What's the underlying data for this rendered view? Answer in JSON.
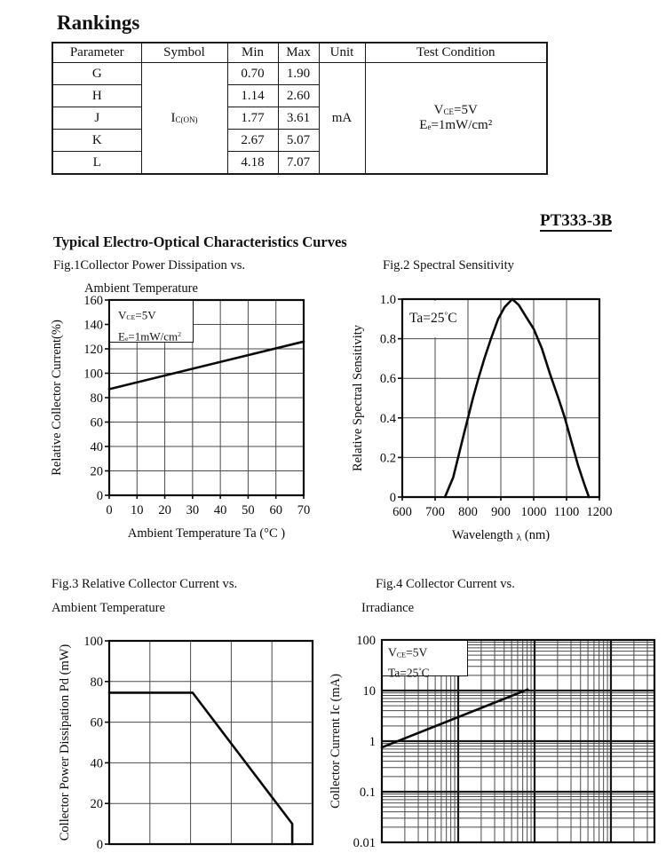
{
  "page": {
    "title": "Rankings",
    "part_number": "PT333-3B",
    "section_heading": "Typical Electro-Optical Characteristics Curves"
  },
  "rankings_table": {
    "headers": [
      "Parameter",
      "Symbol",
      "Min",
      "Max",
      "Unit",
      "Test Condition"
    ],
    "rows": [
      {
        "parameter": "G",
        "min": "0.70",
        "max": "1.90"
      },
      {
        "parameter": "H",
        "min": "1.14",
        "max": "2.60"
      },
      {
        "parameter": "J",
        "min": "1.77",
        "max": "3.61"
      },
      {
        "parameter": "K",
        "min": "2.67",
        "max": "5.07"
      },
      {
        "parameter": "L",
        "min": "4.18",
        "max": "7.07"
      }
    ],
    "symbol": {
      "pre": "I",
      "sub": "C(ON)"
    },
    "unit": "mA",
    "test_condition": {
      "line1": {
        "pre": "V",
        "sub": "CE",
        "mid": "=5V"
      },
      "line2": {
        "pre": "E",
        "sub": "e",
        "mid": "=1mW/cm²"
      }
    }
  },
  "figures": {
    "fig1": {
      "caption_line1": "Fig.1Collector Power Dissipation vs.",
      "caption_line2": "Ambient Temperature",
      "annotation": {
        "line1": {
          "pre": "V",
          "sub": "CE",
          "mid": "=5V"
        },
        "line2": {
          "pre": "E",
          "sub": "e",
          "mid": "=1mW/cm",
          "sup": "2"
        }
      }
    },
    "fig2": {
      "caption": "Fig.2 Spectral Sensitivity",
      "annotation": {
        "line1": {
          "pre": "Ta=25",
          "sup": "°",
          "post": "C"
        }
      }
    },
    "fig3": {
      "caption_line1": "Fig.3 Relative Collector Current vs.",
      "caption_line2": "Ambient Temperature"
    },
    "fig4": {
      "caption_line1": "Fig.4 Collector Current vs.",
      "caption_line2": "Irradiance",
      "annotation": {
        "line1": {
          "pre": "V",
          "sub": "CE",
          "mid": "=5V"
        },
        "line2": {
          "pre": "Ta=25",
          "sup": "°",
          "post": "C"
        }
      }
    }
  },
  "chart_data": [
    {
      "id": "fig1",
      "type": "line",
      "title": "Fig.1 Collector Power Dissipation vs. Ambient Temperature",
      "xlabel": "Ambient Temperature Ta (°C )",
      "ylabel": "Relative Collector Current(%)",
      "xlim": [
        0,
        70
      ],
      "ylim": [
        0,
        160
      ],
      "xticks": [
        0,
        10,
        20,
        30,
        40,
        50,
        60,
        70
      ],
      "yticks": [
        0,
        20,
        40,
        60,
        80,
        100,
        120,
        140,
        160
      ],
      "grid": true,
      "annotation": "VCE=5V, Ee=1mW/cm²",
      "series": [
        {
          "name": "relative collector current",
          "points": [
            [
              0,
              87
            ],
            [
              70,
              126
            ]
          ]
        }
      ]
    },
    {
      "id": "fig2",
      "type": "line",
      "title": "Fig.2 Spectral Sensitivity",
      "xlabel_parts": [
        {
          "t": "Wavelength  "
        },
        {
          "t": "λ",
          "small": true
        },
        {
          "t": "  (nm)"
        }
      ],
      "ylabel": "Relative Spectral Sensitivity",
      "xlim": [
        600,
        1200
      ],
      "ylim": [
        0,
        1.0
      ],
      "xticks": [
        600,
        700,
        800,
        900,
        1000,
        1100,
        1200
      ],
      "yticks": [
        0,
        0.2,
        0.4,
        0.6,
        0.8,
        1.0
      ],
      "ytick_labels": [
        "0",
        "0.2",
        "0.4",
        "0.6",
        "0.8",
        "1.0"
      ],
      "grid": true,
      "annotation": "Ta=25°C",
      "series": [
        {
          "name": "relative spectral sensitivity",
          "points": [
            [
              730,
              0
            ],
            [
              755,
              0.1
            ],
            [
              770,
              0.2
            ],
            [
              785,
              0.3
            ],
            [
              800,
              0.4
            ],
            [
              815,
              0.5
            ],
            [
              832,
              0.6
            ],
            [
              850,
              0.7
            ],
            [
              870,
              0.8
            ],
            [
              892,
              0.9
            ],
            [
              912,
              0.96
            ],
            [
              935,
              1.0
            ],
            [
              955,
              0.97
            ],
            [
              977,
              0.91
            ],
            [
              1000,
              0.85
            ],
            [
              1025,
              0.75
            ],
            [
              1050,
              0.62
            ],
            [
              1075,
              0.5
            ],
            [
              1095,
              0.4
            ],
            [
              1115,
              0.28
            ],
            [
              1135,
              0.16
            ],
            [
              1155,
              0.06
            ],
            [
              1168,
              0
            ]
          ]
        }
      ]
    },
    {
      "id": "fig3",
      "type": "line",
      "title": "Fig.3 Relative Collector Current vs. Ambient Temperature",
      "ylabel": "Collector Power Dissipation Pd (mW)",
      "xlim": [
        0,
        100
      ],
      "ylim": [
        0,
        100
      ],
      "x_gridlines": [
        20,
        40,
        60,
        80
      ],
      "x_tick_labels_visible": false,
      "yticks": [
        0,
        20,
        40,
        60,
        80,
        100
      ],
      "grid": true,
      "series": [
        {
          "name": "collector power dissipation derating",
          "points": [
            [
              0,
              74.5
            ],
            [
              41,
              74.5
            ],
            [
              90,
              10
            ],
            [
              90,
              0
            ]
          ]
        }
      ]
    },
    {
      "id": "fig4",
      "type": "line",
      "x_scale": "log",
      "y_scale": "log",
      "title": "Fig.4 Collector Current vs. Irradiance",
      "ylabel": "Collector Current Ic (mA)",
      "ylim": [
        0.01,
        100
      ],
      "yticks": [
        100,
        10,
        1,
        0.1,
        0.01
      ],
      "ytick_labels": [
        "100",
        "10",
        "1",
        "0.1",
        "0.01"
      ],
      "x_decades_span": 3.57,
      "x_major_decades": [
        1,
        2,
        3
      ],
      "x_tick_labels_visible": false,
      "grid": true,
      "annotation": "VCE=5V, Ta=25°C",
      "series": [
        {
          "name": "collector current vs irradiance",
          "points_decade_value": [
            [
              0,
              0.75
            ],
            [
              1.91,
              10.5
            ]
          ]
        }
      ]
    }
  ]
}
